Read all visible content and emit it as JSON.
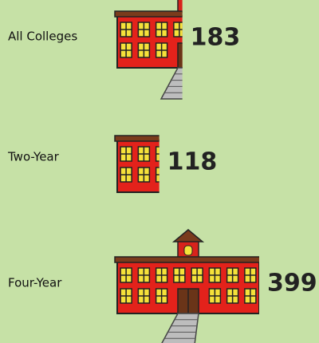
{
  "chart_data": {
    "type": "pictograph",
    "categories": [
      "All Colleges",
      "Two-Year",
      "Four-Year"
    ],
    "values": [
      183,
      118,
      399
    ]
  }
}
